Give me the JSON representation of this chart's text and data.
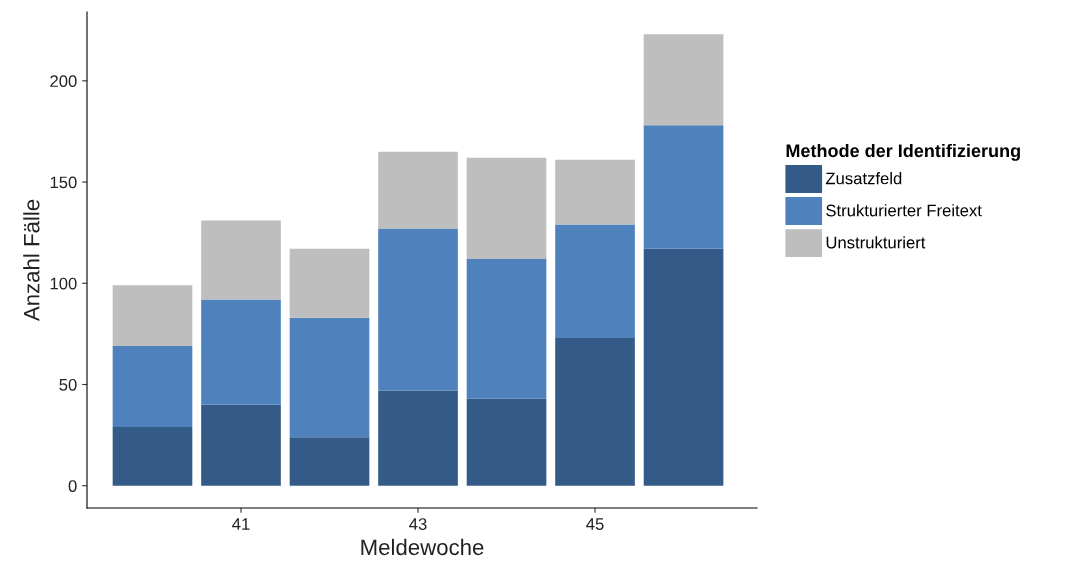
{
  "chart_data": {
    "type": "bar",
    "stacked": true,
    "xlabel": "Meldewoche",
    "ylabel": "Anzahl Fälle",
    "legend_title": "Methode der Identifizierung",
    "x": [
      40,
      41,
      42,
      43,
      44,
      45,
      46
    ],
    "series": [
      {
        "name": "Zusatzfeld",
        "color": "#345a87",
        "values": [
          29,
          40,
          24,
          47,
          43,
          73,
          117
        ]
      },
      {
        "name": "Strukturierter Freitext",
        "color": "#4f81bd",
        "values": [
          40,
          52,
          59,
          80,
          69,
          56,
          61
        ]
      },
      {
        "name": "Unstrukturiert",
        "color": "#bebebe",
        "values": [
          30,
          39,
          34,
          38,
          50,
          32,
          45
        ]
      }
    ],
    "xlim": [
      39.26,
      46.83
    ],
    "xticks": [
      41,
      43,
      45
    ],
    "ylim": [
      -11,
      234
    ],
    "yticks": [
      0,
      50,
      100,
      150,
      200
    ],
    "grid": false,
    "legend": "right"
  }
}
